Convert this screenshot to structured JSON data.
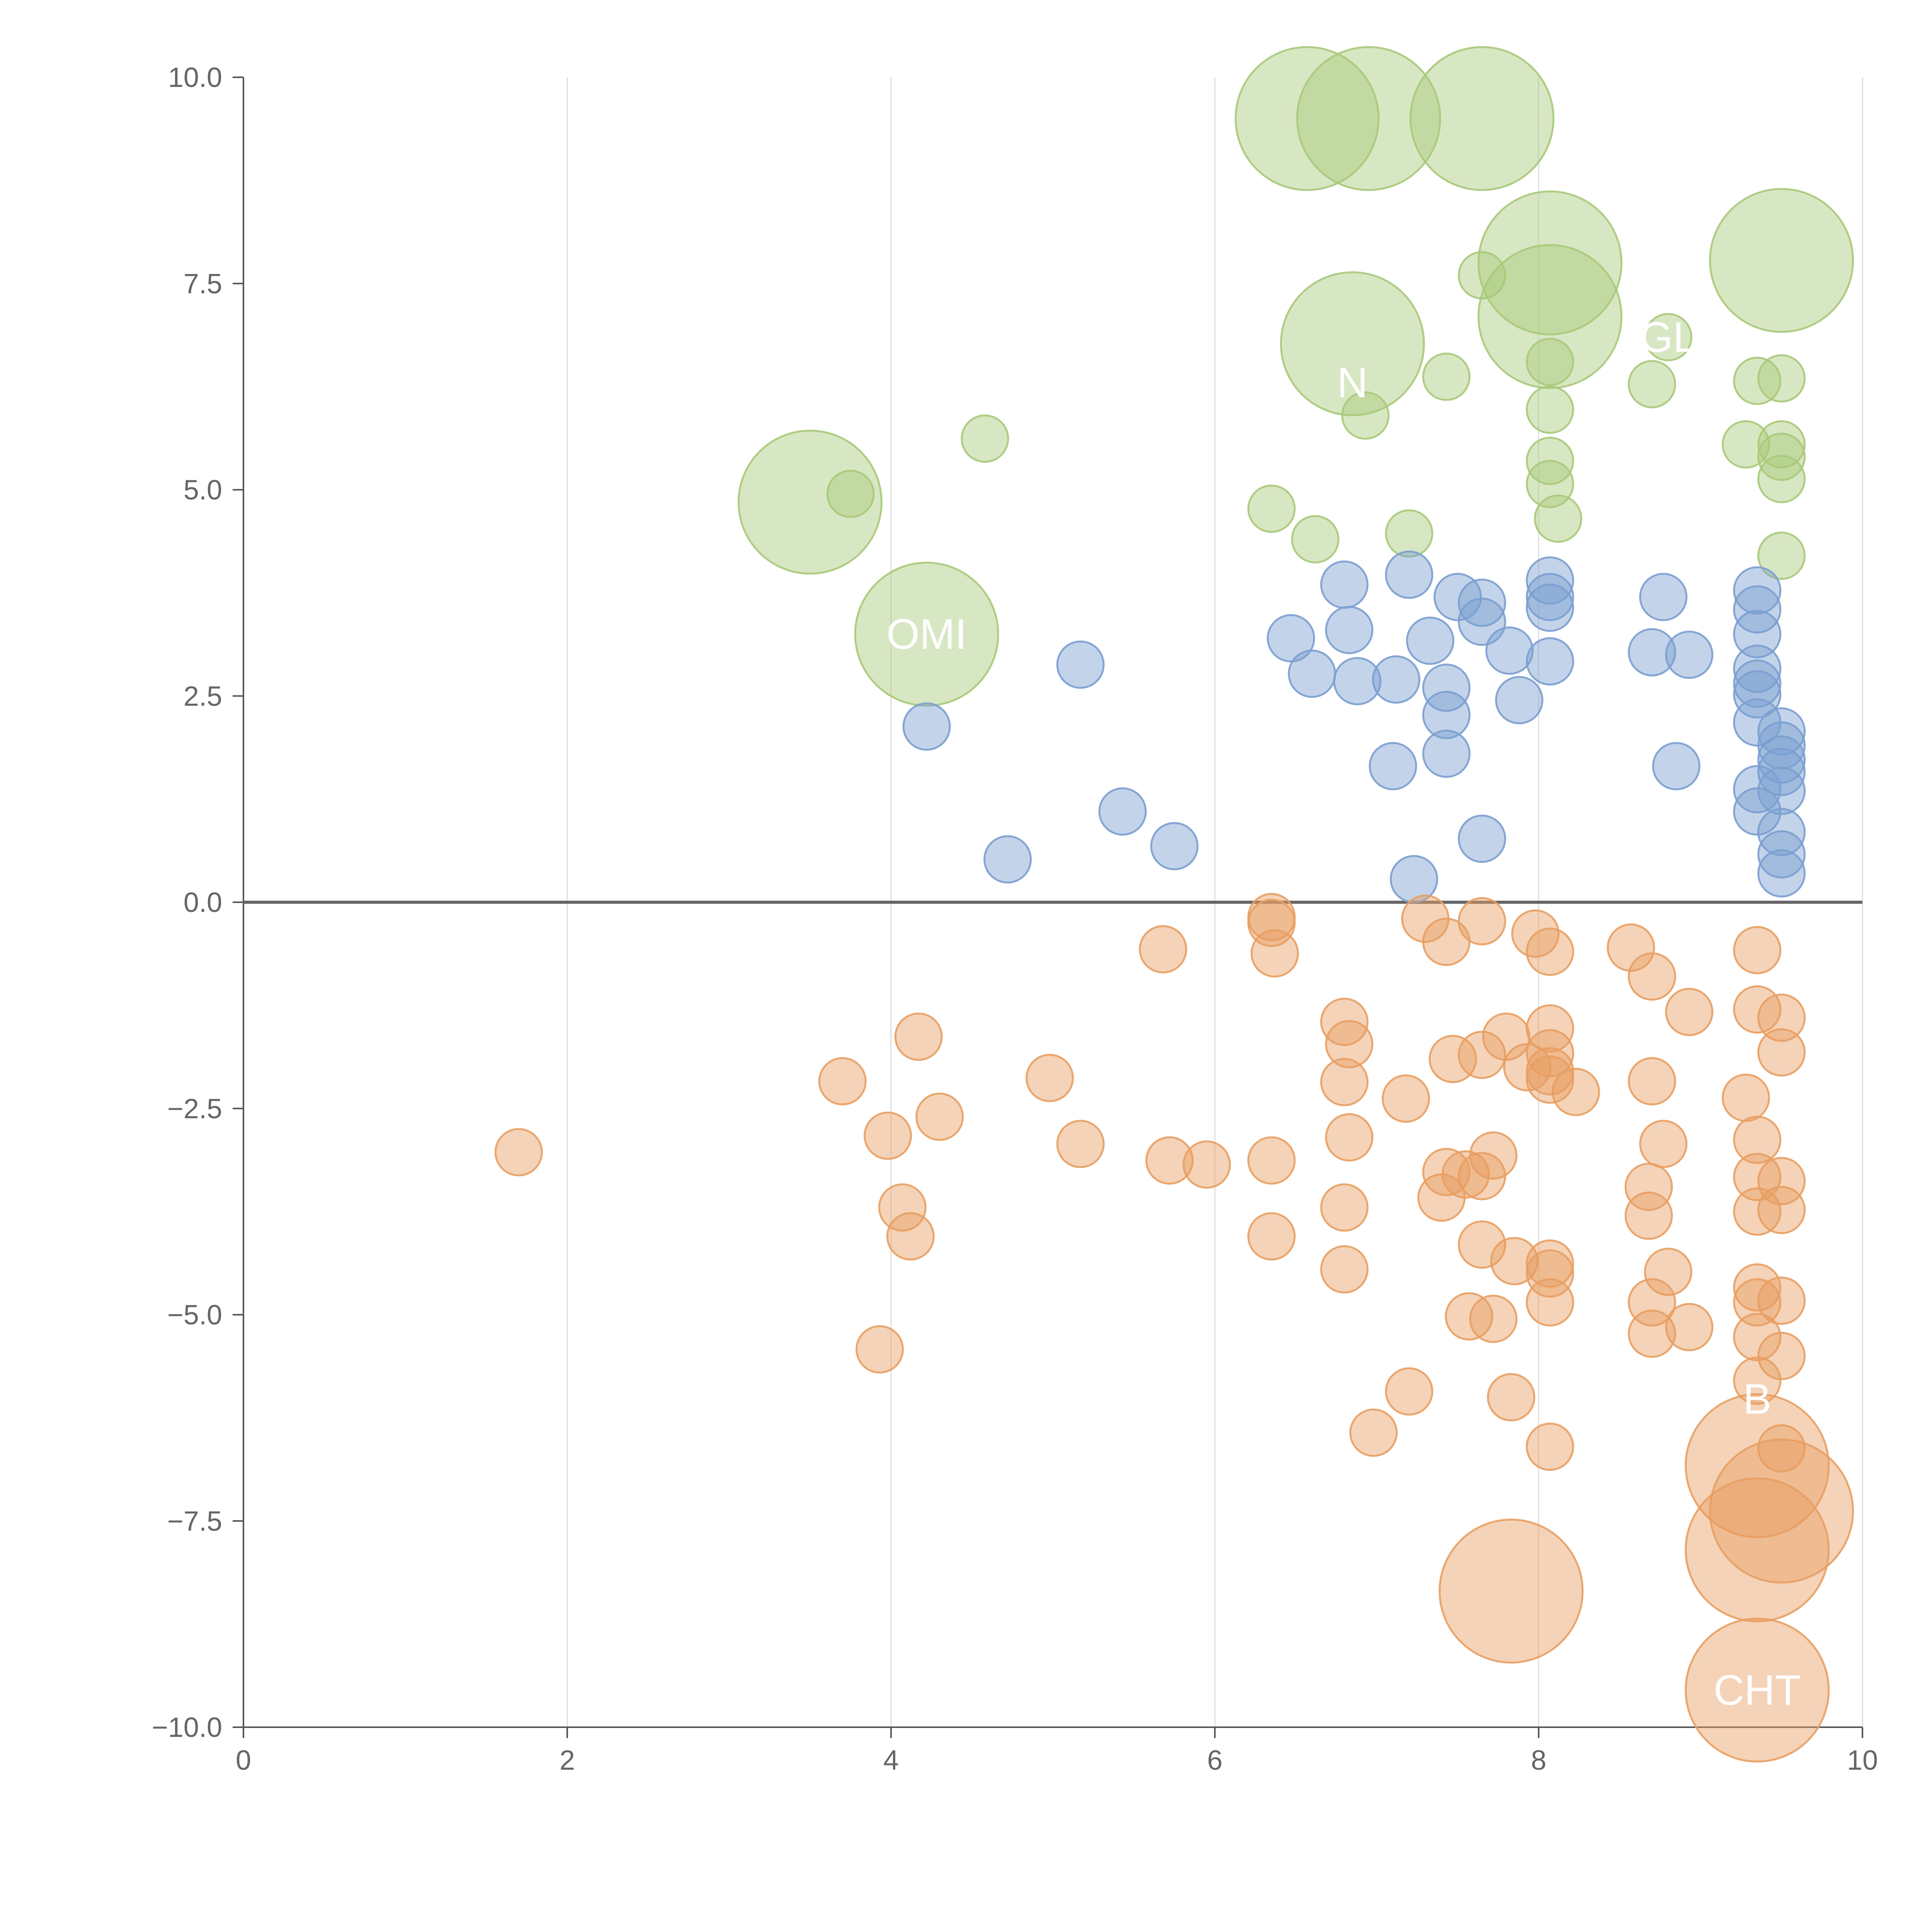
{
  "chart_data": {
    "type": "scatter",
    "title": "",
    "xlabel": "",
    "ylabel": "",
    "xlim": [
      0,
      10
    ],
    "ylim": [
      -10,
      10
    ],
    "x_ticks": [
      0,
      2,
      4,
      6,
      8,
      10
    ],
    "x_tick_labels": [
      "0",
      "2",
      "4",
      "6",
      "8",
      "10"
    ],
    "y_ticks": [
      -10,
      -7.5,
      -5,
      -2.5,
      0,
      2.5,
      5,
      7.5,
      10
    ],
    "y_tick_labels": [
      "−10.0",
      "−7.5",
      "−5.0",
      "−2.5",
      "0.0",
      "2.5",
      "5.0",
      "7.5",
      "10.0"
    ],
    "grid": "vertical",
    "zero_line": 0,
    "colors": {
      "green": "#a8c97a",
      "blue": "#7b9fd0",
      "orange": "#e89e62"
    },
    "series": [
      {
        "name": "green",
        "points": [
          {
            "x": 6.57,
            "y": 9.5,
            "size": 3
          },
          {
            "x": 6.95,
            "y": 9.5,
            "size": 3
          },
          {
            "x": 7.65,
            "y": 9.5,
            "size": 3
          },
          {
            "x": 8.07,
            "y": 7.75,
            "size": 3
          },
          {
            "x": 9.5,
            "y": 7.78,
            "size": 3
          },
          {
            "x": 7.65,
            "y": 7.6,
            "size": 1
          },
          {
            "x": 8.07,
            "y": 7.1,
            "size": 3
          },
          {
            "x": 6.85,
            "y": 6.77,
            "size": 3
          },
          {
            "x": 8.8,
            "y": 6.85,
            "size": 1
          },
          {
            "x": 8.07,
            "y": 6.55,
            "size": 1
          },
          {
            "x": 7.43,
            "y": 6.37,
            "size": 1
          },
          {
            "x": 8.7,
            "y": 6.28,
            "size": 1
          },
          {
            "x": 9.35,
            "y": 6.32,
            "size": 1
          },
          {
            "x": 9.5,
            "y": 6.35,
            "size": 1
          },
          {
            "x": 8.07,
            "y": 5.97,
            "size": 1
          },
          {
            "x": 6.93,
            "y": 5.9,
            "size": 1
          },
          {
            "x": 4.58,
            "y": 5.62,
            "size": 1
          },
          {
            "x": 9.28,
            "y": 5.55,
            "size": 1
          },
          {
            "x": 9.5,
            "y": 5.55,
            "size": 1
          },
          {
            "x": 9.5,
            "y": 5.4,
            "size": 1
          },
          {
            "x": 8.07,
            "y": 5.35,
            "size": 1
          },
          {
            "x": 9.5,
            "y": 5.13,
            "size": 1
          },
          {
            "x": 8.07,
            "y": 5.07,
            "size": 1
          },
          {
            "x": 3.75,
            "y": 4.95,
            "size": 1
          },
          {
            "x": 3.5,
            "y": 4.85,
            "size": 3
          },
          {
            "x": 6.35,
            "y": 4.77,
            "size": 1
          },
          {
            "x": 8.12,
            "y": 4.65,
            "size": 1
          },
          {
            "x": 7.2,
            "y": 4.47,
            "size": 1
          },
          {
            "x": 6.62,
            "y": 4.4,
            "size": 1
          },
          {
            "x": 9.5,
            "y": 4.2,
            "size": 1
          },
          {
            "x": 4.22,
            "y": 3.25,
            "size": 3
          }
        ]
      },
      {
        "name": "blue",
        "points": [
          {
            "x": 7.2,
            "y": 3.97,
            "size": 1
          },
          {
            "x": 8.07,
            "y": 3.9,
            "size": 1
          },
          {
            "x": 6.8,
            "y": 3.85,
            "size": 1
          },
          {
            "x": 9.35,
            "y": 3.78,
            "size": 1
          },
          {
            "x": 7.5,
            "y": 3.7,
            "size": 1
          },
          {
            "x": 8.77,
            "y": 3.7,
            "size": 1
          },
          {
            "x": 7.65,
            "y": 3.63,
            "size": 1
          },
          {
            "x": 8.07,
            "y": 3.7,
            "size": 1
          },
          {
            "x": 8.07,
            "y": 3.57,
            "size": 1
          },
          {
            "x": 9.35,
            "y": 3.55,
            "size": 1
          },
          {
            "x": 7.65,
            "y": 3.4,
            "size": 1
          },
          {
            "x": 6.83,
            "y": 3.3,
            "size": 1
          },
          {
            "x": 9.35,
            "y": 3.25,
            "size": 1
          },
          {
            "x": 6.47,
            "y": 3.2,
            "size": 1
          },
          {
            "x": 7.33,
            "y": 3.17,
            "size": 1
          },
          {
            "x": 7.82,
            "y": 3.05,
            "size": 1
          },
          {
            "x": 8.7,
            "y": 3.03,
            "size": 1
          },
          {
            "x": 8.93,
            "y": 3.0,
            "size": 1
          },
          {
            "x": 8.07,
            "y": 2.92,
            "size": 1
          },
          {
            "x": 5.17,
            "y": 2.88,
            "size": 1
          },
          {
            "x": 9.35,
            "y": 2.83,
            "size": 1
          },
          {
            "x": 6.6,
            "y": 2.77,
            "size": 1
          },
          {
            "x": 7.12,
            "y": 2.7,
            "size": 1
          },
          {
            "x": 6.88,
            "y": 2.68,
            "size": 1
          },
          {
            "x": 9.35,
            "y": 2.65,
            "size": 1
          },
          {
            "x": 7.43,
            "y": 2.6,
            "size": 1
          },
          {
            "x": 9.35,
            "y": 2.52,
            "size": 1
          },
          {
            "x": 7.88,
            "y": 2.45,
            "size": 1
          },
          {
            "x": 7.43,
            "y": 2.27,
            "size": 1
          },
          {
            "x": 9.35,
            "y": 2.18,
            "size": 1
          },
          {
            "x": 4.22,
            "y": 2.13,
            "size": 1
          },
          {
            "x": 9.5,
            "y": 2.07,
            "size": 1
          },
          {
            "x": 9.5,
            "y": 1.9,
            "size": 1
          },
          {
            "x": 7.43,
            "y": 1.8,
            "size": 1
          },
          {
            "x": 9.5,
            "y": 1.73,
            "size": 1
          },
          {
            "x": 7.1,
            "y": 1.65,
            "size": 1
          },
          {
            "x": 8.85,
            "y": 1.65,
            "size": 1
          },
          {
            "x": 9.5,
            "y": 1.58,
            "size": 1
          },
          {
            "x": 9.35,
            "y": 1.37,
            "size": 1
          },
          {
            "x": 9.5,
            "y": 1.35,
            "size": 1
          },
          {
            "x": 5.43,
            "y": 1.1,
            "size": 1
          },
          {
            "x": 9.35,
            "y": 1.1,
            "size": 1
          },
          {
            "x": 9.5,
            "y": 0.85,
            "size": 1
          },
          {
            "x": 7.65,
            "y": 0.77,
            "size": 1
          },
          {
            "x": 5.75,
            "y": 0.68,
            "size": 1
          },
          {
            "x": 9.5,
            "y": 0.58,
            "size": 1
          },
          {
            "x": 4.72,
            "y": 0.52,
            "size": 1
          },
          {
            "x": 9.5,
            "y": 0.35,
            "size": 1
          },
          {
            "x": 7.23,
            "y": 0.28,
            "size": 1
          }
        ]
      },
      {
        "name": "orange",
        "points": [
          {
            "x": 6.35,
            "y": -0.18,
            "size": 1
          },
          {
            "x": 6.35,
            "y": -0.25,
            "size": 1
          },
          {
            "x": 7.3,
            "y": -0.2,
            "size": 1
          },
          {
            "x": 7.65,
            "y": -0.23,
            "size": 1
          },
          {
            "x": 7.98,
            "y": -0.38,
            "size": 1
          },
          {
            "x": 7.43,
            "y": -0.48,
            "size": 1
          },
          {
            "x": 8.57,
            "y": -0.55,
            "size": 1
          },
          {
            "x": 5.68,
            "y": -0.57,
            "size": 1
          },
          {
            "x": 9.35,
            "y": -0.58,
            "size": 1
          },
          {
            "x": 8.07,
            "y": -0.6,
            "size": 1
          },
          {
            "x": 6.37,
            "y": -0.62,
            "size": 1
          },
          {
            "x": 8.7,
            "y": -0.9,
            "size": 1
          },
          {
            "x": 9.35,
            "y": -1.3,
            "size": 1
          },
          {
            "x": 8.93,
            "y": -1.33,
            "size": 1
          },
          {
            "x": 9.5,
            "y": -1.4,
            "size": 1
          },
          {
            "x": 6.8,
            "y": -1.45,
            "size": 1
          },
          {
            "x": 8.07,
            "y": -1.53,
            "size": 1
          },
          {
            "x": 4.17,
            "y": -1.63,
            "size": 1
          },
          {
            "x": 7.8,
            "y": -1.63,
            "size": 1
          },
          {
            "x": 6.83,
            "y": -1.72,
            "size": 1
          },
          {
            "x": 9.5,
            "y": -1.82,
            "size": 1
          },
          {
            "x": 8.07,
            "y": -1.83,
            "size": 1
          },
          {
            "x": 7.65,
            "y": -1.85,
            "size": 1
          },
          {
            "x": 7.47,
            "y": -1.9,
            "size": 1
          },
          {
            "x": 7.93,
            "y": -2.0,
            "size": 1
          },
          {
            "x": 8.07,
            "y": -2.05,
            "size": 1
          },
          {
            "x": 4.98,
            "y": -2.13,
            "size": 1
          },
          {
            "x": 8.07,
            "y": -2.15,
            "size": 1
          },
          {
            "x": 3.7,
            "y": -2.17,
            "size": 1
          },
          {
            "x": 6.8,
            "y": -2.18,
            "size": 1
          },
          {
            "x": 8.7,
            "y": -2.17,
            "size": 1
          },
          {
            "x": 8.23,
            "y": -2.3,
            "size": 1
          },
          {
            "x": 7.18,
            "y": -2.38,
            "size": 1
          },
          {
            "x": 9.28,
            "y": -2.37,
            "size": 1
          },
          {
            "x": 4.3,
            "y": -2.6,
            "size": 1
          },
          {
            "x": 3.98,
            "y": -2.83,
            "size": 1
          },
          {
            "x": 6.83,
            "y": -2.85,
            "size": 1
          },
          {
            "x": 9.35,
            "y": -2.88,
            "size": 1
          },
          {
            "x": 5.17,
            "y": -2.93,
            "size": 1
          },
          {
            "x": 8.77,
            "y": -2.93,
            "size": 1
          },
          {
            "x": 1.7,
            "y": -3.03,
            "size": 1
          },
          {
            "x": 7.72,
            "y": -3.07,
            "size": 1
          },
          {
            "x": 5.72,
            "y": -3.13,
            "size": 1
          },
          {
            "x": 6.35,
            "y": -3.13,
            "size": 1
          },
          {
            "x": 5.95,
            "y": -3.18,
            "size": 1
          },
          {
            "x": 7.43,
            "y": -3.27,
            "size": 1
          },
          {
            "x": 7.55,
            "y": -3.3,
            "size": 1
          },
          {
            "x": 7.65,
            "y": -3.32,
            "size": 1
          },
          {
            "x": 9.35,
            "y": -3.33,
            "size": 1
          },
          {
            "x": 9.5,
            "y": -3.38,
            "size": 1
          },
          {
            "x": 8.68,
            "y": -3.45,
            "size": 1
          },
          {
            "x": 7.4,
            "y": -3.58,
            "size": 1
          },
          {
            "x": 4.07,
            "y": -3.7,
            "size": 1
          },
          {
            "x": 6.8,
            "y": -3.7,
            "size": 1
          },
          {
            "x": 9.35,
            "y": -3.75,
            "size": 1
          },
          {
            "x": 9.5,
            "y": -3.73,
            "size": 1
          },
          {
            "x": 8.68,
            "y": -3.8,
            "size": 1
          },
          {
            "x": 4.12,
            "y": -4.05,
            "size": 1
          },
          {
            "x": 6.35,
            "y": -4.05,
            "size": 1
          },
          {
            "x": 7.65,
            "y": -4.15,
            "size": 1
          },
          {
            "x": 7.85,
            "y": -4.35,
            "size": 1
          },
          {
            "x": 8.07,
            "y": -4.38,
            "size": 1
          },
          {
            "x": 6.8,
            "y": -4.45,
            "size": 1
          },
          {
            "x": 8.07,
            "y": -4.5,
            "size": 1
          },
          {
            "x": 8.8,
            "y": -4.48,
            "size": 1
          },
          {
            "x": 9.35,
            "y": -4.67,
            "size": 1
          },
          {
            "x": 9.35,
            "y": -4.85,
            "size": 1
          },
          {
            "x": 9.5,
            "y": -4.83,
            "size": 1
          },
          {
            "x": 8.07,
            "y": -4.85,
            "size": 1
          },
          {
            "x": 8.7,
            "y": -4.85,
            "size": 1
          },
          {
            "x": 7.57,
            "y": -5.02,
            "size": 1
          },
          {
            "x": 7.72,
            "y": -5.05,
            "size": 1
          },
          {
            "x": 8.93,
            "y": -5.15,
            "size": 1
          },
          {
            "x": 8.7,
            "y": -5.23,
            "size": 1
          },
          {
            "x": 9.35,
            "y": -5.27,
            "size": 1
          },
          {
            "x": 3.93,
            "y": -5.42,
            "size": 1
          },
          {
            "x": 9.5,
            "y": -5.5,
            "size": 1
          },
          {
            "x": 9.35,
            "y": -5.8,
            "size": 1
          },
          {
            "x": 7.2,
            "y": -5.93,
            "size": 1
          },
          {
            "x": 7.83,
            "y": -6.0,
            "size": 1
          },
          {
            "x": 6.98,
            "y": -6.43,
            "size": 1
          },
          {
            "x": 8.07,
            "y": -6.6,
            "size": 1
          },
          {
            "x": 9.5,
            "y": -6.62,
            "size": 1
          },
          {
            "x": 9.35,
            "y": -6.83,
            "size": 3
          },
          {
            "x": 9.5,
            "y": -7.38,
            "size": 3
          },
          {
            "x": 9.35,
            "y": -7.85,
            "size": 3
          },
          {
            "x": 7.83,
            "y": -8.35,
            "size": 3
          },
          {
            "x": 9.35,
            "y": -9.55,
            "size": 3
          }
        ]
      }
    ],
    "annotations": [
      {
        "text": "CHT",
        "x": 9.35,
        "y": -9.55
      },
      {
        "text": "OMI",
        "x": 4.22,
        "y": 3.25
      },
      {
        "text": "GL",
        "x": 8.8,
        "y": 6.85
      },
      {
        "text": "N",
        "x": 6.85,
        "y": 6.3
      },
      {
        "text": "B",
        "x": 9.35,
        "y": -6.02
      }
    ]
  }
}
